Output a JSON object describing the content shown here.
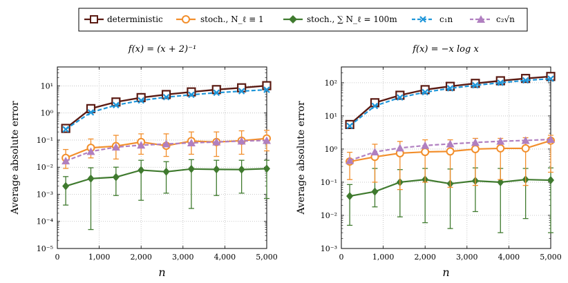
{
  "colors": {
    "deterministic": "#5a1a12",
    "stoch_one": "#f28e2b",
    "stoch_m": "#3f7a2e",
    "c1n": "#1f96d9",
    "c2sqrt": "#b07fc0"
  },
  "legend": {
    "deterministic": "deterministic",
    "stoch_one": "stoch., N_ℓ ≡ 1",
    "stoch_m": "stoch., ∑ N_ℓ = 100m",
    "c1n": "c₁n",
    "c2sqrt": "c₂√n"
  },
  "chart_data": [
    {
      "type": "line",
      "title": "f(x) = (x + 2)⁻¹",
      "xlabel": "n",
      "ylabel": "Average absolute error",
      "xlim": [
        0,
        5000
      ],
      "ylim": [
        1e-05,
        50
      ],
      "yscale": "log",
      "x_ticks": [
        0,
        1000,
        2000,
        3000,
        4000,
        5000
      ],
      "x_tick_labels": [
        "0",
        "1,000",
        "2,000",
        "3,000",
        "4,000",
        "5,000"
      ],
      "y_ticks": [
        1e-05,
        0.0001,
        0.001,
        0.01,
        0.1,
        1,
        10
      ],
      "y_tick_labels": [
        "10⁻⁵",
        "10⁻⁴",
        "10⁻³",
        "10⁻²",
        "10⁻¹",
        "10⁰",
        "10¹"
      ],
      "x": [
        200,
        800,
        1400,
        2000,
        2600,
        3200,
        3800,
        4400,
        5000
      ],
      "series": [
        {
          "key": "deterministic",
          "name": "deterministic",
          "values": [
            0.27,
            1.45,
            2.55,
            3.7,
            4.8,
            6.0,
            7.3,
            8.5,
            10.2
          ]
        },
        {
          "key": "stoch_one",
          "name": "stoch., N_ℓ ≡ 1",
          "values": [
            0.022,
            0.052,
            0.06,
            0.085,
            0.062,
            0.092,
            0.085,
            0.095,
            0.115
          ],
          "err_low": [
            0.009,
            0.022,
            0.02,
            0.03,
            0.025,
            0.03,
            0.025,
            0.03,
            0.04
          ],
          "err_high": [
            0.045,
            0.11,
            0.15,
            0.17,
            0.17,
            0.2,
            0.2,
            0.22,
            0.23
          ]
        },
        {
          "key": "stoch_m",
          "name": "stoch., ∑ N_ℓ = 100m",
          "values": [
            0.002,
            0.0038,
            0.0043,
            0.0078,
            0.0068,
            0.0086,
            0.0083,
            0.0082,
            0.0088
          ],
          "err_low": [
            0.0004,
            5e-05,
            0.0009,
            0.0006,
            0.0011,
            0.0003,
            0.0009,
            0.0011,
            0.0007
          ],
          "err_high": [
            0.0045,
            0.0095,
            0.01,
            0.018,
            0.016,
            0.019,
            0.018,
            0.018,
            0.018
          ]
        },
        {
          "key": "c1n",
          "name": "c₁n",
          "values": [
            0.25,
            1.05,
            1.95,
            2.9,
            3.85,
            4.7,
            5.6,
            6.4,
            7.2
          ]
        },
        {
          "key": "c2sqrt",
          "name": "c₂√n",
          "values": [
            0.017,
            0.038,
            0.055,
            0.065,
            0.072,
            0.079,
            0.085,
            0.092,
            0.097
          ]
        }
      ]
    },
    {
      "type": "line",
      "title": "f(x) = −x log x",
      "xlabel": "n",
      "ylabel": "Average absolute error",
      "xlim": [
        0,
        5000
      ],
      "ylim": [
        0.001,
        300
      ],
      "yscale": "log",
      "x_ticks": [
        0,
        1000,
        2000,
        3000,
        4000,
        5000
      ],
      "x_tick_labels": [
        "0",
        "1,000",
        "2,000",
        "3,000",
        "4,000",
        "5,000"
      ],
      "y_ticks": [
        0.001,
        0.01,
        0.1,
        1,
        10,
        100
      ],
      "y_tick_labels": [
        "10⁻³",
        "10⁻²",
        "10⁻¹",
        "10⁰",
        "10¹",
        "10²"
      ],
      "x": [
        200,
        800,
        1400,
        2000,
        2600,
        3200,
        3800,
        4400,
        5000
      ],
      "series": [
        {
          "key": "deterministic",
          "name": "deterministic",
          "values": [
            5.5,
            25,
            42,
            62,
            78,
            96,
            115,
            135,
            155
          ]
        },
        {
          "key": "stoch_one",
          "name": "stoch., N_ℓ ≡ 1",
          "values": [
            0.42,
            0.58,
            0.75,
            0.82,
            0.85,
            1.0,
            1.05,
            1.05,
            1.8
          ],
          "err_low": [
            0.12,
            0.1,
            0.06,
            0.1,
            0.07,
            0.08,
            0.12,
            0.08,
            0.2
          ],
          "err_high": [
            0.8,
            1.4,
            1.7,
            1.9,
            1.9,
            2.1,
            2.1,
            2.2,
            2.6
          ]
        },
        {
          "key": "stoch_m",
          "name": "stoch., ∑ N_ℓ = 100m",
          "values": [
            0.038,
            0.052,
            0.1,
            0.12,
            0.09,
            0.11,
            0.1,
            0.12,
            0.115
          ],
          "err_low": [
            0.005,
            0.018,
            0.009,
            0.006,
            0.004,
            0.013,
            0.003,
            0.008,
            0.003
          ],
          "err_high": [
            0.085,
            0.26,
            0.24,
            0.26,
            0.25,
            0.27,
            0.26,
            0.26,
            0.27
          ]
        },
        {
          "key": "c1n",
          "name": "c₁n",
          "values": [
            5.0,
            20,
            36,
            52,
            68,
            84,
            100,
            118,
            132
          ]
        },
        {
          "key": "c2sqrt",
          "name": "c₂√n",
          "values": [
            0.45,
            0.82,
            1.08,
            1.28,
            1.43,
            1.58,
            1.72,
            1.82,
            1.95
          ]
        }
      ]
    }
  ]
}
